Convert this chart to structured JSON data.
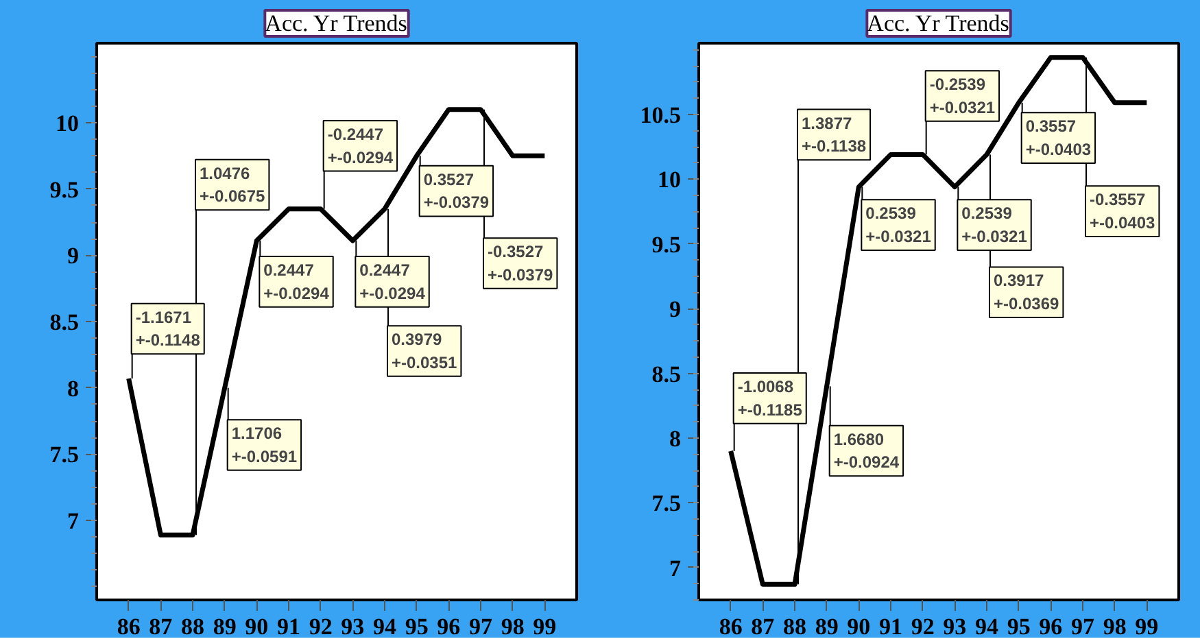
{
  "chart_data": [
    {
      "type": "line",
      "title": "Acc. Yr Trends",
      "categories": [
        "86",
        "87",
        "88",
        "89",
        "90",
        "91",
        "92",
        "93",
        "94",
        "95",
        "96",
        "97",
        "98",
        "99"
      ],
      "values": [
        8.07,
        6.89,
        6.89,
        8.0,
        9.11,
        9.35,
        9.35,
        9.11,
        9.35,
        9.75,
        10.1,
        10.1,
        9.75,
        9.75
      ],
      "color": "#000000",
      "ylim": [
        6.4,
        10.6
      ],
      "yticks": [
        7,
        7.5,
        8,
        8.5,
        9,
        9.5,
        10
      ],
      "grid": false,
      "annotations": [
        {
          "text": "-1.1671\n+-0.1148",
          "x": "86",
          "y": 8.07
        },
        {
          "text": "1.0476\n+-0.0675",
          "x": "88",
          "y": 6.89
        },
        {
          "text": "1.1706\n+-0.0591",
          "x": "89",
          "y": 8.0
        },
        {
          "text": "0.2447\n+-0.0294",
          "x": "90",
          "y": 9.11
        },
        {
          "text": "-0.2447\n+-0.0294",
          "x": "92",
          "y": 9.35
        },
        {
          "text": "0.2447\n+-0.0294",
          "x": "93",
          "y": 9.11
        },
        {
          "text": "0.3979\n+-0.0351",
          "x": "94",
          "y": 9.35
        },
        {
          "text": "0.3527\n+-0.0379",
          "x": "95",
          "y": 9.75
        },
        {
          "text": "-0.3527\n+-0.0379",
          "x": "97",
          "y": 10.1
        }
      ]
    },
    {
      "type": "line",
      "title": "Acc. Yr Trends",
      "categories": [
        "86",
        "87",
        "88",
        "89",
        "90",
        "91",
        "92",
        "93",
        "94",
        "95",
        "96",
        "97",
        "98",
        "99"
      ],
      "values": [
        7.9,
        6.87,
        6.87,
        8.4,
        9.94,
        10.19,
        10.19,
        9.94,
        10.19,
        10.59,
        10.94,
        10.94,
        10.59,
        10.59
      ],
      "color": "#000000",
      "ylim": [
        6.75,
        11.05
      ],
      "yticks": [
        7,
        7.5,
        8,
        8.5,
        9,
        9.5,
        10,
        10.5
      ],
      "grid": false,
      "annotations": [
        {
          "text": "-1.0068\n+-0.1185",
          "x": "86",
          "y": 7.9
        },
        {
          "text": "1.3877\n+-0.1138",
          "x": "88",
          "y": 6.87
        },
        {
          "text": "1.6680\n+-0.0924",
          "x": "89",
          "y": 8.4
        },
        {
          "text": "0.2539\n+-0.0321",
          "x": "90",
          "y": 9.94
        },
        {
          "text": "-0.2539\n+-0.0321",
          "x": "92",
          "y": 10.19
        },
        {
          "text": "0.2539\n+-0.0321",
          "x": "93",
          "y": 9.94
        },
        {
          "text": "0.3917\n+-0.0369",
          "x": "94",
          "y": 10.19
        },
        {
          "text": "0.3557\n+-0.0403",
          "x": "95",
          "y": 10.59
        },
        {
          "text": "-0.3557\n+-0.0403",
          "x": "97",
          "y": 10.94
        }
      ]
    }
  ]
}
